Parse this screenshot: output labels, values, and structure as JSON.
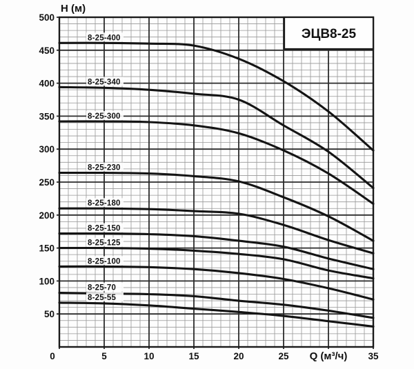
{
  "title_box": {
    "label": "ЭЦВ8-25"
  },
  "axes": {
    "y_title": "H (м)",
    "x_title": "Q (м³/ч)",
    "x_tick_labels": [
      "0",
      "5",
      "10",
      "15",
      "20",
      "25",
      "35"
    ],
    "y_tick_labels": [
      "50",
      "100",
      "150",
      "200",
      "250",
      "300",
      "350",
      "400",
      "450",
      "500"
    ]
  },
  "chart_data": {
    "type": "line",
    "title": "ЭЦВ8-25",
    "xlabel": "Q (м³/ч)",
    "ylabel": "H (м)",
    "xlim": [
      0,
      35
    ],
    "ylim": [
      0,
      500
    ],
    "x_major_step": 5,
    "x_minor_step": 1,
    "y_major_step": 50,
    "y_minor_step": 10,
    "grid": "major+minor",
    "legend_position": "labels-on-curves",
    "x_title_replaces_tick": 30,
    "x": [
      0,
      5,
      10,
      15,
      20,
      25,
      30,
      35
    ],
    "series": [
      {
        "name": "8-25-400",
        "values": [
          461,
          461,
          460,
          457,
          437,
          403,
          357,
          298
        ]
      },
      {
        "name": "8-25-340",
        "values": [
          394,
          393,
          390,
          384,
          375,
          336,
          296,
          241
        ]
      },
      {
        "name": "8-25-300",
        "values": [
          342,
          342,
          341,
          336,
          324,
          298,
          263,
          217
        ]
      },
      {
        "name": "8-25-230",
        "values": [
          264,
          264,
          263,
          259,
          251,
          227,
          198,
          161
        ]
      },
      {
        "name": "8-25-180",
        "values": [
          210,
          210,
          209,
          206,
          202,
          185,
          162,
          142
        ]
      },
      {
        "name": "8-25-150",
        "values": [
          172,
          172,
          171,
          168,
          161,
          152,
          134,
          118
        ]
      },
      {
        "name": "8-25-125",
        "values": [
          150,
          150,
          149,
          146,
          141,
          133,
          116,
          104
        ]
      },
      {
        "name": "8-25-100",
        "values": [
          122,
          122,
          121,
          118,
          112,
          103,
          89,
          72
        ]
      },
      {
        "name": "8-25-70",
        "values": [
          82,
          81,
          80,
          77,
          70,
          64,
          55,
          44
        ]
      },
      {
        "name": "8-25-55",
        "values": [
          67,
          66,
          63,
          58,
          53,
          47,
          39,
          31
        ]
      }
    ],
    "colors": {
      "curve": "#141414",
      "grid_minor": "#979797",
      "grid_major": "#2a2a2a",
      "border": "#1a1a1a",
      "background": "#fdfdfd",
      "title_box_fill": "#fefefe"
    }
  }
}
